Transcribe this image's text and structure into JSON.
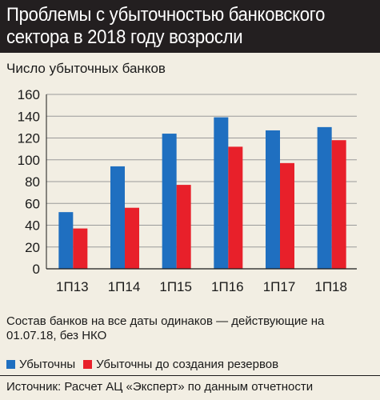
{
  "header": {
    "title": "Проблемы с убыточностью банковского сектора в 2018 году возросли"
  },
  "note": "Состав банков на все даты одинаков — действующие на 01.07.18, без НКО",
  "source": "Источник: Расчет АЦ «Эксперт» по данным отчетности",
  "chart_data": {
    "type": "bar",
    "title": "Проблемы с убыточностью банковского сектора в 2018 году возросли",
    "ylabel": "Число убыточных банков",
    "xlabel": "",
    "categories": [
      "1П13",
      "1П14",
      "1П15",
      "1П16",
      "1П17",
      "1П18"
    ],
    "ylim": [
      0,
      160
    ],
    "yticks": [
      0,
      20,
      40,
      60,
      80,
      100,
      120,
      140,
      160
    ],
    "grid": true,
    "legend_position": "bottom",
    "series": [
      {
        "name": "Убыточны",
        "color": "#1f6fc0",
        "values": [
          52,
          94,
          124,
          139,
          127,
          130
        ]
      },
      {
        "name": "Убыточны до создания резервов",
        "color": "#e8202a",
        "values": [
          37,
          56,
          77,
          112,
          97,
          118
        ]
      }
    ]
  }
}
